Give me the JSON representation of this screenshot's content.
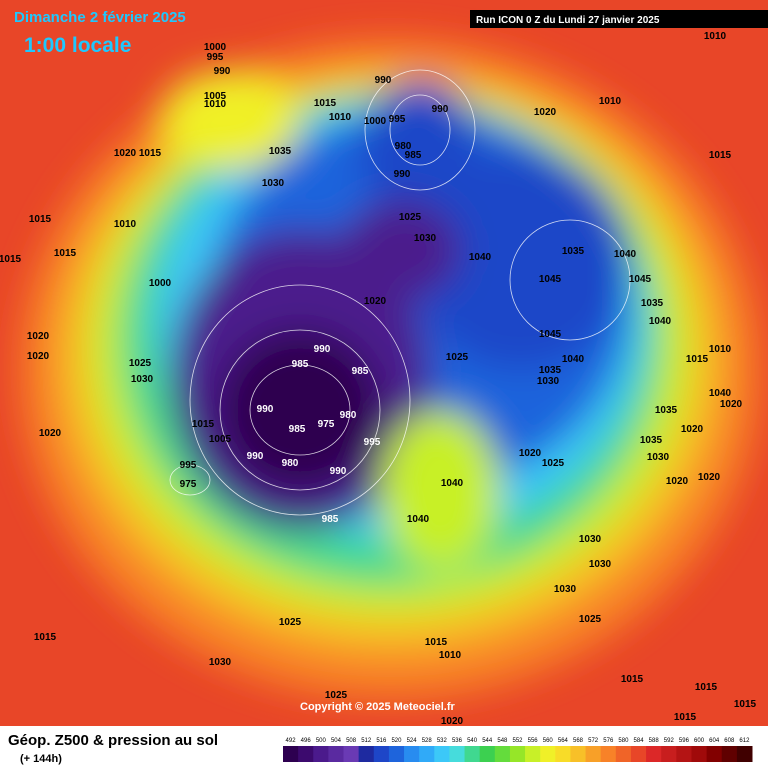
{
  "header": {
    "date": "Dimanche 2 février 2025",
    "time": "1:00 locale",
    "run": "Run ICON 0 Z du Lundi 27 janvier 2025"
  },
  "map": {
    "copyright": "Copyright © 2025 Meteociel.fr",
    "isobar_labels": [
      1000,
      995,
      990,
      1005,
      1010,
      1020,
      1015,
      1035,
      1030,
      1015,
      1010,
      1000,
      995,
      990,
      990,
      980,
      985,
      990,
      1020,
      1010,
      1010,
      1015,
      1025,
      1030,
      1020,
      1040,
      1035,
      1045,
      1040,
      1045,
      1040,
      1035,
      1030,
      1025,
      990,
      985,
      985,
      990,
      985,
      975,
      980,
      995,
      990,
      980,
      990,
      985,
      995,
      975,
      1015,
      1005,
      1040,
      1040,
      1020,
      1025,
      1030,
      1025,
      1025,
      1015,
      1030,
      1015,
      1010,
      1025,
      1020,
      1015,
      1015,
      1015,
      1015,
      1020,
      1020,
      1020,
      1025,
      1030,
      1015,
      1015,
      1015,
      1010,
      1000,
      1045,
      1040,
      1035,
      1010,
      1015,
      1040,
      1020,
      1035,
      1020,
      1030,
      1020,
      1020,
      1035,
      1030,
      1030
    ]
  },
  "footer": {
    "title": "Géop. Z500 & pression au sol",
    "subtitle": "(+ 144h)",
    "scale": [
      492,
      496,
      500,
      504,
      508,
      512,
      516,
      520,
      524,
      528,
      532,
      536,
      540,
      544,
      548,
      552,
      556,
      560,
      564,
      568,
      572,
      576,
      580,
      584,
      588,
      592,
      596,
      600,
      604,
      608,
      612
    ],
    "scale_colors": [
      "#2d0050",
      "#3c0a6e",
      "#4b1a8c",
      "#5a2aa0",
      "#6a3ab4",
      "#1e2aa0",
      "#1e46c8",
      "#1e64dc",
      "#288cf0",
      "#30aaf8",
      "#3cc8f8",
      "#46dcdc",
      "#40d890",
      "#3cd050",
      "#64dc3c",
      "#96e628",
      "#c8f028",
      "#f0f028",
      "#f8dc28",
      "#f8c028",
      "#f8a028",
      "#f88228",
      "#f06428",
      "#e84628",
      "#dc2828",
      "#c81e1e",
      "#b41414",
      "#a00a0a",
      "#820000",
      "#600000",
      "#400000"
    ]
  }
}
